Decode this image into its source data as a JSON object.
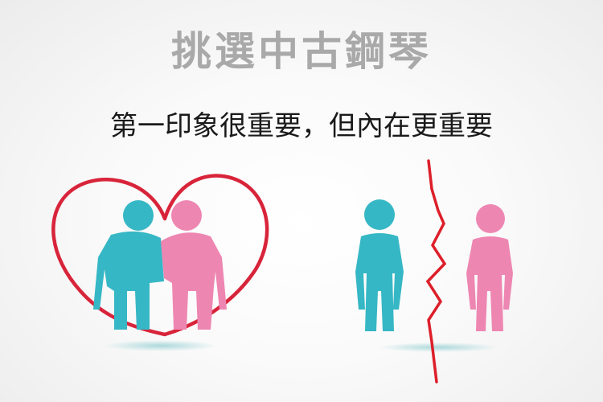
{
  "title": "挑選中古鋼琴",
  "subtitle": "第一印象很重要，但內在更重要",
  "colors": {
    "title": "#a9a9a9",
    "subtitle": "#1a1a1a",
    "heart": "#d8243a",
    "teal": "#36b7c5",
    "pink": "#ee86b2",
    "crack": "#dd1f2a",
    "shadow": "#9fd3d6"
  },
  "icons": [
    "heart-outline",
    "person-teal",
    "person-pink",
    "broken-crack-line"
  ]
}
